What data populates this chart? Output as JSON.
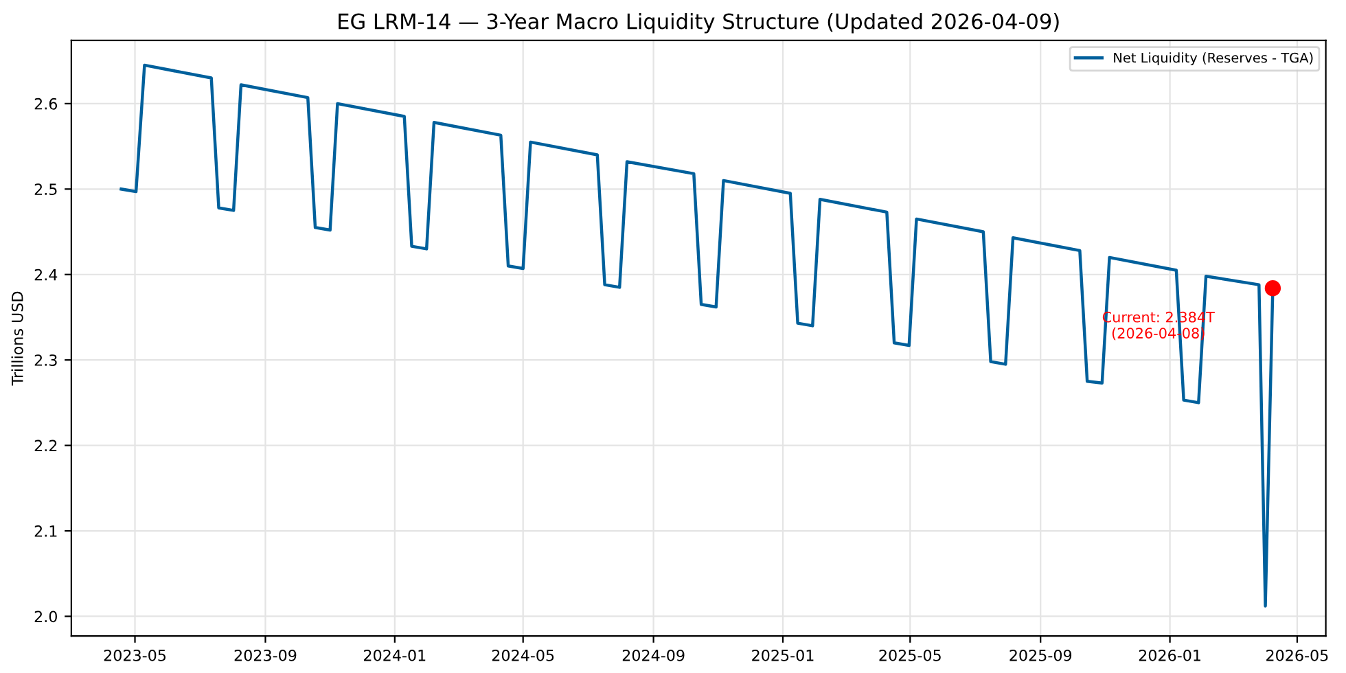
{
  "chart_data": {
    "type": "line",
    "title": "EG LRM-14 — 3-Year Macro Liquidity Structure (Updated 2026-04-09)",
    "ylabel": "Trillions USD",
    "series": [
      {
        "name": "Net Liquidity (Reserves - TGA)",
        "color": "#00609c",
        "x": [
          "2023-04-18",
          "2023-05-02",
          "2023-05-10",
          "2023-07-12",
          "2023-07-19",
          "2023-08-02",
          "2023-08-09",
          "2023-10-11",
          "2023-10-18",
          "2023-11-01",
          "2023-11-08",
          "2024-01-10",
          "2024-01-17",
          "2024-01-31",
          "2024-02-07",
          "2024-04-10",
          "2024-04-17",
          "2024-05-01",
          "2024-05-08",
          "2024-07-10",
          "2024-07-17",
          "2024-07-31",
          "2024-08-07",
          "2024-10-09",
          "2024-10-16",
          "2024-10-30",
          "2024-11-06",
          "2025-01-08",
          "2025-01-15",
          "2025-01-29",
          "2025-02-05",
          "2025-04-09",
          "2025-04-16",
          "2025-04-30",
          "2025-05-07",
          "2025-07-09",
          "2025-07-16",
          "2025-07-30",
          "2025-08-06",
          "2025-10-08",
          "2025-10-15",
          "2025-10-29",
          "2025-11-05",
          "2026-01-07",
          "2026-01-14",
          "2026-01-28",
          "2026-02-04",
          "2026-03-26",
          "2026-04-01",
          "2026-04-08"
        ],
        "values": [
          2.5,
          2.497,
          2.645,
          2.63,
          2.478,
          2.475,
          2.622,
          2.607,
          2.455,
          2.452,
          2.6,
          2.585,
          2.433,
          2.43,
          2.578,
          2.563,
          2.41,
          2.407,
          2.555,
          2.54,
          2.388,
          2.385,
          2.532,
          2.518,
          2.365,
          2.362,
          2.51,
          2.495,
          2.343,
          2.34,
          2.488,
          2.473,
          2.32,
          2.317,
          2.465,
          2.45,
          2.298,
          2.295,
          2.443,
          2.428,
          2.275,
          2.273,
          2.42,
          2.405,
          2.253,
          2.25,
          2.398,
          2.388,
          2.012,
          2.384
        ]
      },
      {
        "type": "scatter",
        "color": "#ff0000",
        "x": [
          "2026-04-08"
        ],
        "values": [
          2.384
        ]
      }
    ],
    "annotations": [
      "Current: 2.384T\n(2026-04-08)"
    ],
    "xlim": [
      "2023-03-02",
      "2026-05-28"
    ],
    "xticks": [
      {
        "value": "2023-05-01",
        "label": "2023-05"
      },
      {
        "value": "2023-09-01",
        "label": "2023-09"
      },
      {
        "value": "2024-01-01",
        "label": "2024-01"
      },
      {
        "value": "2024-05-01",
        "label": "2024-05"
      },
      {
        "value": "2024-09-01",
        "label": "2024-09"
      },
      {
        "value": "2025-01-01",
        "label": "2025-01"
      },
      {
        "value": "2025-05-01",
        "label": "2025-05"
      },
      {
        "value": "2025-09-01",
        "label": "2025-09"
      },
      {
        "value": "2026-01-01",
        "label": "2026-01"
      },
      {
        "value": "2026-05-01",
        "label": "2026-05"
      }
    ],
    "ylim": [
      1.977,
      2.674
    ],
    "yticks": [
      {
        "value": 2.0,
        "label": "2.0"
      },
      {
        "value": 2.1,
        "label": "2.1"
      },
      {
        "value": 2.2,
        "label": "2.2"
      },
      {
        "value": 2.3,
        "label": "2.3"
      },
      {
        "value": 2.4,
        "label": "2.4"
      },
      {
        "value": 2.5,
        "label": "2.5"
      },
      {
        "value": 2.6,
        "label": "2.6"
      }
    ],
    "grid": true,
    "legend": "top right"
  }
}
